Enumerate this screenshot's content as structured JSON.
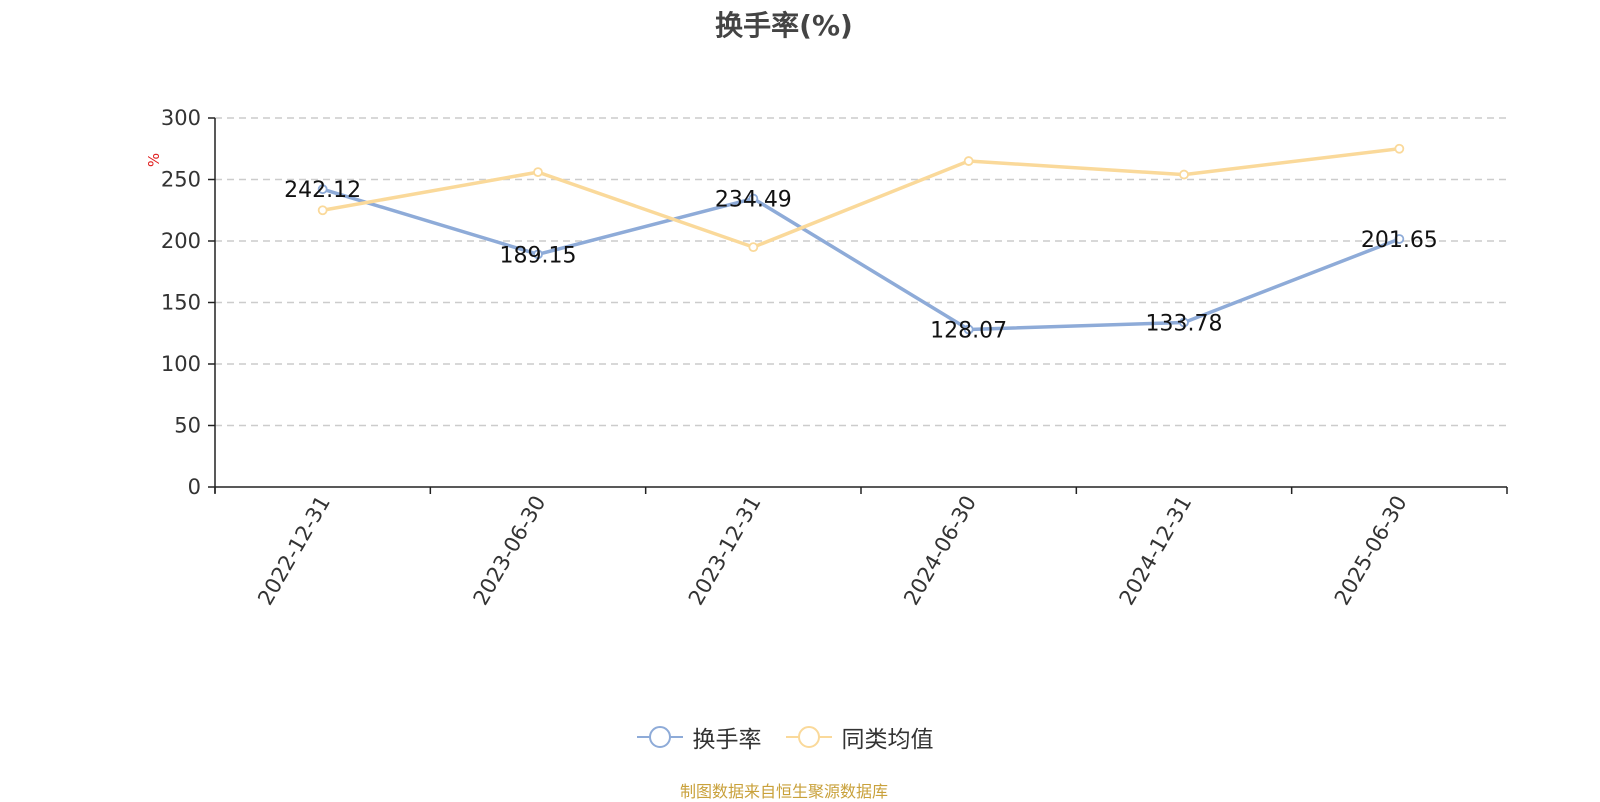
{
  "title": "换手率(%)",
  "unit_label": "%",
  "source_note": "制图数据来自恒生聚源数据库",
  "colors": {
    "series_1": "#8eabd8",
    "series_2": "#fad99a",
    "unit_label": "#e02020"
  },
  "chart_data": {
    "type": "line",
    "title": "换手率(%)",
    "ylabel": "%",
    "ylim": [
      0,
      300
    ],
    "yticks": [
      0,
      50,
      100,
      150,
      200,
      250,
      300
    ],
    "grid": true,
    "legend_position": "bottom",
    "categories": [
      "2022-12-31",
      "2023-06-30",
      "2023-12-31",
      "2024-06-30",
      "2024-12-31",
      "2025-06-30"
    ],
    "series": [
      {
        "name": "换手率",
        "values": [
          242.12,
          189.15,
          234.49,
          128.07,
          133.78,
          201.65
        ],
        "labels": [
          "242.12",
          "189.15",
          "234.49",
          "128.07",
          "133.78",
          "201.65"
        ]
      },
      {
        "name": "同类均值",
        "values": [
          225,
          256,
          195,
          265,
          254,
          275
        ]
      }
    ]
  }
}
